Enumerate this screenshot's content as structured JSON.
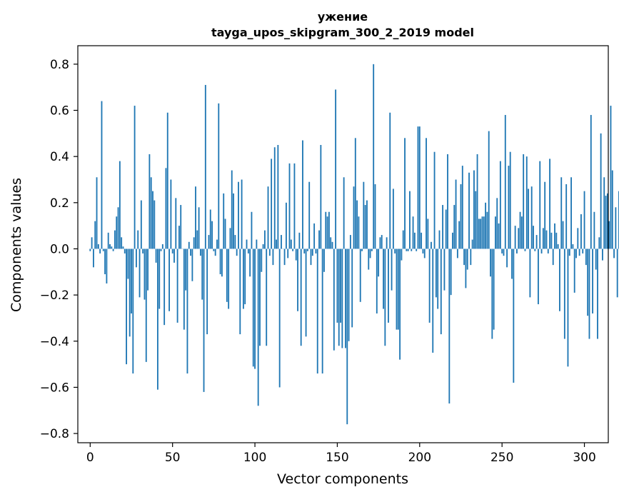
{
  "chart_data": {
    "type": "bar",
    "title": "ужение",
    "subtitle": "tayga_upos_skipgram_300_2_2019 model",
    "xlabel": "Vector components",
    "ylabel": "Components values",
    "xlim": [
      -7.5,
      314.5
    ],
    "ylim": [
      -0.84,
      0.88
    ],
    "xticks": [
      0,
      50,
      100,
      150,
      200,
      250,
      300
    ],
    "xtick_labels": [
      "0",
      "50",
      "100",
      "150",
      "200",
      "250",
      "300"
    ],
    "yticks": [
      -0.8,
      -0.6,
      -0.4,
      -0.2,
      0.0,
      0.2,
      0.4,
      0.6,
      0.8
    ],
    "ytick_labels": [
      "−0.8",
      "−0.6",
      "−0.4",
      "−0.2",
      "0.0",
      "0.2",
      "0.4",
      "0.6",
      "0.8"
    ],
    "bar_color": "#1f77b4",
    "grid": false,
    "legend": "none",
    "values": [
      -0.01,
      0.05,
      -0.08,
      0.12,
      0.31,
      0.02,
      -0.02,
      0.64,
      -0.01,
      -0.11,
      -0.15,
      0.07,
      0.02,
      0.01,
      -0.01,
      0.08,
      0.14,
      0.18,
      0.38,
      0.05,
      0.01,
      -0.02,
      -0.5,
      -0.13,
      -0.38,
      -0.28,
      -0.54,
      0.62,
      -0.08,
      0.08,
      -0.21,
      0.21,
      -0.02,
      -0.22,
      -0.49,
      -0.18,
      0.41,
      0.31,
      0.25,
      0.21,
      -0.06,
      -0.61,
      -0.26,
      -0.01,
      0.02,
      -0.33,
      0.35,
      0.59,
      -0.27,
      0.3,
      -0.02,
      -0.06,
      0.22,
      -0.32,
      0.1,
      0.19,
      0.0,
      -0.35,
      -0.18,
      -0.54,
      0.03,
      -0.03,
      -0.14,
      0.05,
      0.27,
      0.08,
      0.18,
      -0.03,
      -0.22,
      -0.62,
      0.71,
      -0.37,
      0.06,
      0.17,
      0.12,
      -0.01,
      -0.03,
      0.04,
      0.63,
      -0.11,
      -0.12,
      0.24,
      0.13,
      -0.23,
      -0.26,
      0.09,
      0.34,
      0.24,
      0.06,
      -0.03,
      0.29,
      -0.37,
      0.3,
      -0.26,
      -0.24,
      0.04,
      -0.02,
      -0.12,
      0.16,
      -0.51,
      -0.52,
      0.04,
      -0.68,
      -0.42,
      -0.1,
      0.02,
      0.08,
      -0.42,
      0.27,
      -0.03,
      0.39,
      -0.07,
      0.44,
      0.04,
      0.45,
      -0.6,
      0.06,
      0.0,
      -0.07,
      0.2,
      -0.04,
      0.37,
      0.04,
      -0.01,
      0.37,
      -0.05,
      -0.27,
      0.07,
      -0.42,
      0.47,
      -0.02,
      -0.38,
      -0.01,
      0.29,
      -0.07,
      -0.03,
      0.11,
      -0.02,
      -0.54,
      0.08,
      0.45,
      -0.54,
      -0.1,
      0.16,
      0.14,
      0.16,
      0.05,
      0.03,
      -0.44,
      0.69,
      -0.32,
      -0.42,
      -0.32,
      -0.43,
      0.31,
      -0.43,
      -0.76,
      -0.4,
      0.06,
      -0.34,
      0.27,
      0.48,
      0.21,
      0.14,
      -0.23,
      -0.01,
      0.29,
      0.19,
      0.21,
      -0.09,
      -0.04,
      -0.01,
      0.8,
      0.28,
      -0.28,
      -0.12,
      0.05,
      0.06,
      -0.26,
      -0.42,
      0.05,
      -0.32,
      0.59,
      -0.18,
      0.26,
      -0.02,
      -0.35,
      -0.35,
      -0.48,
      -0.05,
      0.08,
      0.48,
      -0.01,
      -0.01,
      0.25,
      -0.01,
      0.14,
      0.07,
      -0.01,
      0.53,
      0.53,
      0.07,
      -0.02,
      -0.04,
      0.48,
      0.13,
      -0.32,
      0.03,
      -0.45,
      0.42,
      -0.21,
      -0.26,
      0.08,
      -0.37,
      0.19,
      -0.18,
      0.17,
      0.41,
      -0.67,
      -0.2,
      0.07,
      0.19,
      0.3,
      -0.04,
      0.12,
      0.28,
      0.36,
      -0.07,
      -0.17,
      -0.09,
      0.33,
      -0.07,
      0.04,
      0.34,
      0.25,
      0.41,
      0.13,
      0.13,
      0.14,
      0.14,
      0.2,
      0.16,
      0.51,
      -0.12,
      -0.39,
      -0.35,
      0.14,
      0.22,
      0.11,
      0.38,
      -0.02,
      -0.03,
      0.58,
      -0.08,
      0.36,
      0.42,
      -0.13,
      -0.58,
      0.1,
      -0.02,
      0.09,
      0.16,
      0.14,
      0.41,
      -0.01,
      0.4,
      0.26,
      -0.21,
      0.27,
      0.1,
      -0.01,
      0.06,
      -0.24,
      0.38,
      -0.02,
      0.09,
      0.29,
      0.08,
      -0.02,
      0.39,
      0.07,
      -0.07,
      0.11,
      0.07,
      0.02,
      -0.27,
      0.31,
      0.12,
      -0.39,
      0.28,
      -0.51,
      -0.03,
      0.31,
      0.02,
      -0.19,
      -0.04,
      0.09,
      -0.03,
      0.15,
      -0.02,
      0.25,
      -0.07,
      -0.29,
      -0.39,
      0.58,
      -0.28,
      0.16,
      -0.09,
      -0.39,
      0.05,
      0.5,
      -0.05,
      0.31,
      0.23,
      0.24,
      0.12,
      0.62,
      0.34,
      -0.04,
      0.18,
      -0.21,
      0.25,
      0.15
    ]
  }
}
